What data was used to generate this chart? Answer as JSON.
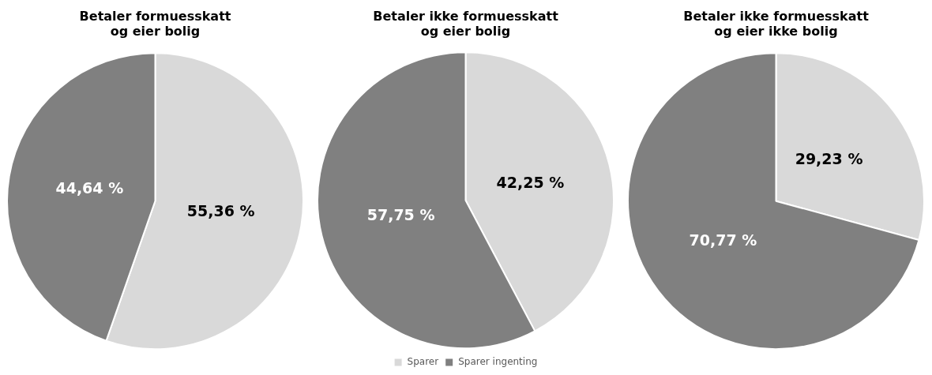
{
  "chart_data": [
    {
      "type": "pie",
      "title": "Betaler formuesskatt og eier bolig",
      "categories": [
        null,
        null
      ],
      "values": [
        55.36,
        44.64
      ],
      "colors": [
        "#d9d9d9",
        "#808080"
      ],
      "value_labels": [
        "55,36 %",
        "44,64 %"
      ],
      "legend": false
    },
    {
      "type": "pie",
      "title": "Betaler ikke formuesskatt og eier bolig",
      "categories": [
        "Sparer",
        "Sparer ingenting"
      ],
      "values": [
        42.25,
        57.75
      ],
      "colors": [
        "#d9d9d9",
        "#808080"
      ],
      "value_labels": [
        "42,25 %",
        "57,75 %"
      ],
      "legend": "bottom"
    },
    {
      "type": "pie",
      "title": "Betaler ikke formuesskatt og eier ikke bolig",
      "categories": [
        null,
        null
      ],
      "values": [
        29.23,
        70.77
      ],
      "colors": [
        "#d9d9d9",
        "#808080"
      ],
      "value_labels": [
        "29,23 %",
        "70,77 %"
      ],
      "legend": false
    }
  ]
}
